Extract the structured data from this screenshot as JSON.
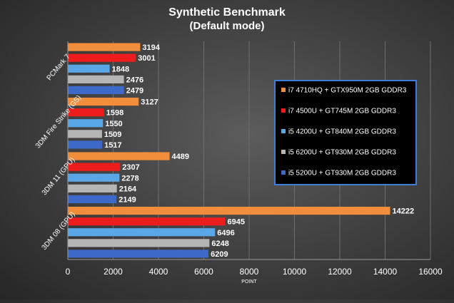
{
  "chart_data": {
    "type": "bar",
    "orientation": "horizontal",
    "title": "Synthetic Benchmark",
    "subtitle": "(Default mode)",
    "xlabel": "POINT",
    "ylabel": "",
    "xlim": [
      0,
      16000
    ],
    "x_ticks": [
      "0",
      "2000",
      "4000",
      "6000",
      "8000",
      "10000",
      "12000",
      "14000",
      "16000"
    ],
    "grid": true,
    "legend_position": "right",
    "categories": [
      "PCMark 7",
      "3DM Fire Strike (GS)",
      "3DM 11 (GPU)",
      "3DM 08 (GPU)"
    ],
    "series": [
      {
        "name": "i7 4710HQ + GTX950M 2GB GDDR3",
        "color": "#f28e3b",
        "values": [
          3194,
          3127,
          4489,
          14222
        ]
      },
      {
        "name": "i7 4500U + GT745M 2GB GDDR3",
        "color": "#ee1d1d",
        "values": [
          3001,
          1598,
          2307,
          6945
        ]
      },
      {
        "name": "i5 4200U + GT840M 2GB GDDR3",
        "color": "#5aa7e8",
        "values": [
          1848,
          1550,
          2278,
          6496
        ]
      },
      {
        "name": "i5 6200U + GT930M 2GB GDDR3",
        "color": "#b5b5b5",
        "values": [
          2476,
          1509,
          2164,
          6248
        ]
      },
      {
        "name": "i5 5200U + GT930M 2GB GDDR3",
        "color": "#3d6ac9",
        "values": [
          2479,
          1517,
          2149,
          6209
        ]
      }
    ]
  }
}
